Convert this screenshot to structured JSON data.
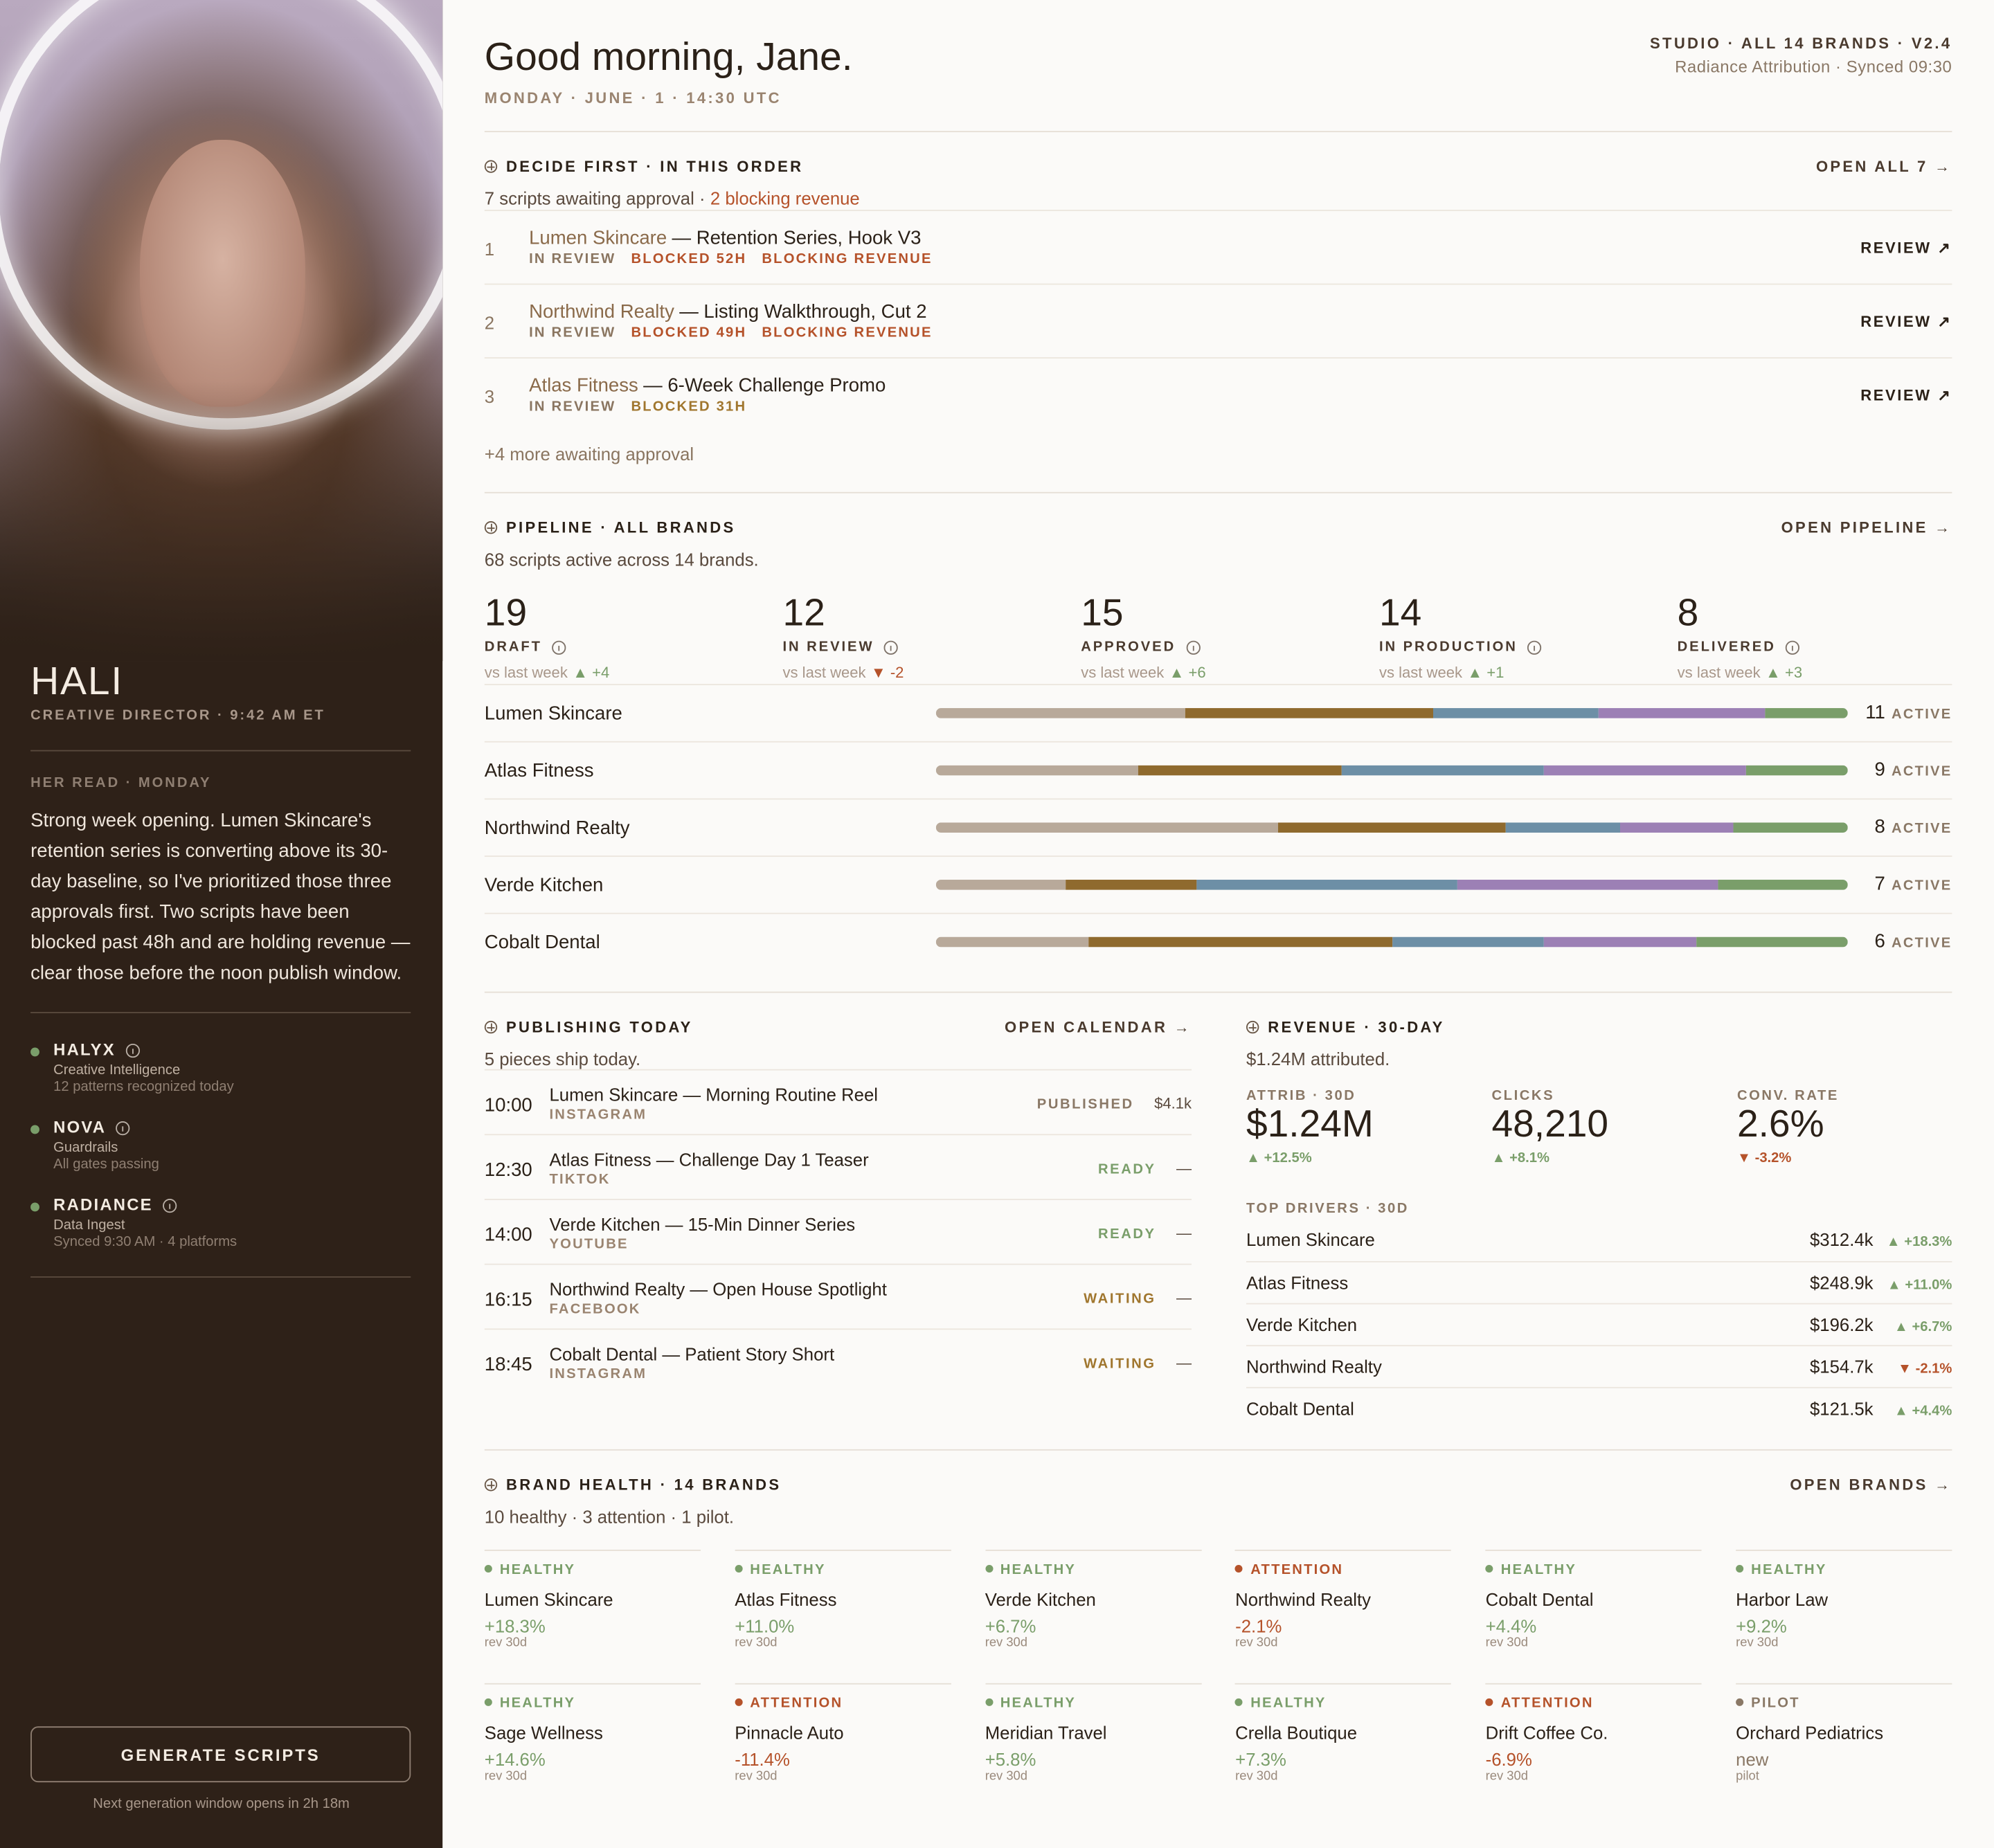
{
  "sidebar": {
    "name": "HALI",
    "role": "CREATIVE DIRECTOR · 9:42 AM ET",
    "read_label": "HER READ · MONDAY",
    "read_text": "Strong week opening. Lumen Skincare's retention series is converting above its 30-day baseline, so I've prioritized those three approvals first. Two scripts have been blocked past 48h and are holding revenue — clear those before the noon publish window.",
    "agents": [
      {
        "name": "HALYX",
        "role": "Creative Intelligence",
        "status": "12 patterns recognized today"
      },
      {
        "name": "NOVA",
        "role": "Guardrails",
        "status": "All gates passing"
      },
      {
        "name": "RADIANCE",
        "role": "Data Ingest",
        "status": "Synced 9:30 AM · 4 platforms"
      }
    ],
    "button": "GENERATE SCRIPTS",
    "button_note": "Next generation window opens in 2h 18m"
  },
  "header": {
    "greeting": "Good morning, Jane.",
    "date": "MONDAY · JUNE · 1 · 14:30 UTC",
    "studio": "STUDIO · ALL 14 BRANDS · V2.4",
    "sync": "Radiance Attribution · Synced 09:30"
  },
  "decide": {
    "title": "DECIDE FIRST · IN THIS ORDER",
    "action": "OPEN ALL 7 →",
    "summary": "7 scripts awaiting approval ·",
    "summary_alert": "2 blocking revenue",
    "items": [
      {
        "rank": 1,
        "brand": "Lumen Skincare",
        "title": "— Retention Series, Hook V3",
        "tags": [
          {
            "label": "IN REVIEW",
            "color": "#8a7560"
          },
          {
            "label": "BLOCKED 52H",
            "color": "#b5522a"
          },
          {
            "label": "BLOCKING REVENUE",
            "color": "#b5522a"
          }
        ],
        "action": "REVIEW ↗"
      },
      {
        "rank": 2,
        "brand": "Northwind Realty",
        "title": "— Listing Walkthrough, Cut 2",
        "tags": [
          {
            "label": "IN REVIEW",
            "color": "#8a7560"
          },
          {
            "label": "BLOCKED 49H",
            "color": "#b5522a"
          },
          {
            "label": "BLOCKING REVENUE",
            "color": "#b5522a"
          }
        ],
        "action": "REVIEW ↗"
      },
      {
        "rank": 3,
        "brand": "Atlas Fitness",
        "title": "— 6-Week Challenge Promo",
        "tags": [
          {
            "label": "IN REVIEW",
            "color": "#8a7560"
          },
          {
            "label": "BLOCKED 31H",
            "color": "#a0762e"
          }
        ],
        "action": "REVIEW ↗"
      }
    ],
    "more": "+4 more awaiting approval"
  },
  "pipeline": {
    "title": "PIPELINE · ALL BRANDS",
    "action": "OPEN PIPELINE →",
    "summary": "68 scripts active across 14 brands.",
    "stages": [
      {
        "count": 19,
        "label": "DRAFT",
        "compare": "vs last week",
        "delta": "▲ +4",
        "color": "#b8a99a"
      },
      {
        "count": 12,
        "label": "IN REVIEW",
        "compare": "vs last week",
        "delta": "▼ -2",
        "color": "#8f6a2e"
      },
      {
        "count": 15,
        "label": "APPROVED",
        "compare": "vs last week",
        "delta": "▲ +6",
        "color": "#6d8fa6"
      },
      {
        "count": 14,
        "label": "IN PRODUCTION",
        "compare": "vs last week",
        "delta": "▲ +1",
        "color": "#9c80b5"
      },
      {
        "count": 8,
        "label": "DELIVERED",
        "compare": "vs last week",
        "delta": "▲ +3",
        "color": "#7a9e6a"
      }
    ],
    "active_label": "ACTIVE",
    "brands": [
      {
        "name": "Lumen Skincare",
        "segments": [
          3,
          3,
          2,
          2,
          1
        ],
        "active": 11
      },
      {
        "name": "Atlas Fitness",
        "segments": [
          2,
          2,
          2,
          2,
          1
        ],
        "active": 9
      },
      {
        "name": "Northwind Realty",
        "segments": [
          3,
          2,
          1,
          1,
          1
        ],
        "active": 8
      },
      {
        "name": "Verde Kitchen",
        "segments": [
          1,
          1,
          2,
          2,
          1
        ],
        "active": 7
      },
      {
        "name": "Cobalt Dental",
        "segments": [
          1,
          2,
          1,
          1,
          1
        ],
        "active": 6
      }
    ]
  },
  "publishing": {
    "title": "PUBLISHING TODAY",
    "action": "OPEN CALENDAR →",
    "summary": "5 pieces ship today.",
    "items": [
      {
        "time": "10:00",
        "title": "Lumen Skincare — Morning Routine Reel",
        "platform": "INSTAGRAM",
        "status": "PUBLISHED",
        "color": "#8a7866",
        "value": "$4.1k"
      },
      {
        "time": "12:30",
        "title": "Atlas Fitness — Challenge Day 1 Teaser",
        "platform": "TIKTOK",
        "status": "READY",
        "color": "#7a9e6a",
        "value": "—"
      },
      {
        "time": "14:00",
        "title": "Verde Kitchen — 15-Min Dinner Series",
        "platform": "YOUTUBE",
        "status": "READY",
        "color": "#7a9e6a",
        "value": "—"
      },
      {
        "time": "16:15",
        "title": "Northwind Realty — Open House Spotlight",
        "platform": "FACEBOOK",
        "status": "WAITING",
        "color": "#a0762e",
        "value": "—"
      },
      {
        "time": "18:45",
        "title": "Cobalt Dental — Patient Story Short",
        "platform": "INSTAGRAM",
        "status": "WAITING",
        "color": "#a0762e",
        "value": "—"
      }
    ]
  },
  "revenue": {
    "title": "REVENUE · 30-DAY",
    "summary": "$1.24M attributed.",
    "kpis": [
      {
        "label": "ATTRIB · 30D",
        "value": "$1.24M",
        "delta": "▲ +12.5%"
      },
      {
        "label": "CLICKS",
        "value": "48,210",
        "delta": "▲ +8.1%"
      },
      {
        "label": "CONV. RATE",
        "value": "2.6%",
        "delta": "▼ -3.2%"
      }
    ],
    "drivers_label": "TOP DRIVERS · 30D",
    "drivers": [
      {
        "brand": "Lumen Skincare",
        "value": "$312.4k",
        "delta": "▲ +18.3%"
      },
      {
        "brand": "Atlas Fitness",
        "value": "$248.9k",
        "delta": "▲ +11.0%"
      },
      {
        "brand": "Verde Kitchen",
        "value": "$196.2k",
        "delta": "▲ +6.7%"
      },
      {
        "brand": "Northwind Realty",
        "value": "$154.7k",
        "delta": "▼ -2.1%"
      },
      {
        "brand": "Cobalt Dental",
        "value": "$121.5k",
        "delta": "▲ +4.4%"
      }
    ]
  },
  "brand_health": {
    "title": "BRAND HEALTH · 14 BRANDS",
    "action": "OPEN BRANDS →",
    "summary": "10 healthy · 3 attention · 1 pilot.",
    "brands": [
      {
        "status": "HEALTHY",
        "color": "#7a9e6a",
        "name": "Lumen Skincare",
        "change": "+18.3%",
        "note": "rev 30d"
      },
      {
        "status": "HEALTHY",
        "color": "#7a9e6a",
        "name": "Atlas Fitness",
        "change": "+11.0%",
        "note": "rev 30d"
      },
      {
        "status": "HEALTHY",
        "color": "#7a9e6a",
        "name": "Verde Kitchen",
        "change": "+6.7%",
        "note": "rev 30d"
      },
      {
        "status": "ATTENTION",
        "color": "#b5522a",
        "name": "Northwind Realty",
        "change": "-2.1%",
        "note": "rev 30d"
      },
      {
        "status": "HEALTHY",
        "color": "#7a9e6a",
        "name": "Cobalt Dental",
        "change": "+4.4%",
        "note": "rev 30d"
      },
      {
        "status": "HEALTHY",
        "color": "#7a9e6a",
        "name": "Harbor Law",
        "change": "+9.2%",
        "note": "rev 30d"
      },
      {
        "status": "HEALTHY",
        "color": "#7a9e6a",
        "name": "Sage Wellness",
        "change": "+14.6%",
        "note": "rev 30d"
      },
      {
        "status": "ATTENTION",
        "color": "#b5522a",
        "name": "Pinnacle Auto",
        "change": "-11.4%",
        "note": "rev 30d"
      },
      {
        "status": "HEALTHY",
        "color": "#7a9e6a",
        "name": "Meridian Travel",
        "change": "+5.8%",
        "note": "rev 30d"
      },
      {
        "status": "HEALTHY",
        "color": "#7a9e6a",
        "name": "Crella Boutique",
        "change": "+7.3%",
        "note": "rev 30d"
      },
      {
        "status": "ATTENTION",
        "color": "#b5522a",
        "name": "Drift Coffee Co.",
        "change": "-6.9%",
        "note": "rev 30d"
      },
      {
        "status": "PILOT",
        "color": "#8a7866",
        "name": "Orchard Pediatrics",
        "change": "new",
        "note": "pilot"
      }
    ]
  }
}
